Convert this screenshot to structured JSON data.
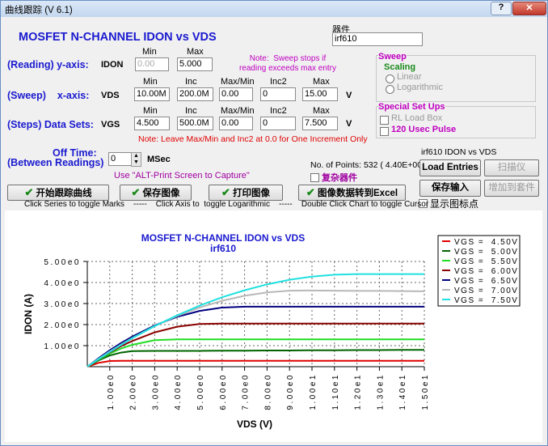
{
  "window": {
    "title": "曲线跟踪 (V 6.1)",
    "help": "?"
  },
  "form": {
    "heading": "MOSFET N-CHANNEL IDON vs VDS",
    "device_label": "器件",
    "device_value": "irf610",
    "y_row": {
      "label": "(Reading) y-axis:",
      "name": "IDON",
      "headers": [
        "Min",
        "Max"
      ],
      "values": [
        "0.00",
        "5.000"
      ]
    },
    "note1": [
      "Note:  Sweep stops if",
      "reading exceeds max entry"
    ],
    "x_row": {
      "label": "(Sweep)    x-axis:",
      "name": "VDS",
      "headers": [
        "Min",
        "Inc",
        "Max/Min",
        "Inc2",
        "Max"
      ],
      "values": [
        "10.00M",
        "200.0M",
        "0.00",
        "0",
        "15.00"
      ],
      "unit": "V"
    },
    "s_row": {
      "label": "(Steps) Data Sets:",
      "name": "VGS",
      "headers": [
        "Min",
        "Inc",
        "Max/Min",
        "Inc2",
        "Max"
      ],
      "values": [
        "4.500",
        "500.0M",
        "0.00",
        "0",
        "7.500"
      ],
      "unit": "V"
    },
    "note2": "Note: Leave Max/Min and Inc2 at 0.0 for One Increment Only",
    "sweep": {
      "title": "Sweep",
      "scaling": "Scaling",
      "options": [
        "Linear",
        "Logarithmic"
      ]
    },
    "special": {
      "title": "Special Set Ups",
      "options": [
        "RL Load Box",
        "120 Usec Pulse"
      ]
    },
    "off_time": {
      "label1": "Off Time:",
      "label2": "(Between Readings)",
      "value": "0",
      "unit": "MSec"
    },
    "capture_hint": "Use \"ALT-Print Screen to Capture\"",
    "points": "No. of Points: 532 ( 4.40E+00)",
    "complex": "复杂器件",
    "chart_name": "irf610 IDON vs VDS",
    "show_marks": "显示图标点",
    "hint": "Click Series to toggle Marks    -----    Click Axis to  toggle Logarithmic    -----    Double Click Chart to toggle Cursor"
  },
  "buttons": {
    "load": "Load Entries",
    "scan": "扫描仪",
    "save_input": "保存输入",
    "add_kit": "增加到套件",
    "start": "开始跟踪曲线",
    "save_image": "保存图像",
    "print": "打印图像",
    "excel": "图像数据转到Excel"
  },
  "chart_data": {
    "type": "line",
    "title": "MOSFET N-CHANNEL IDON vs VDS",
    "subtitle": "irf610",
    "x_label": "VDS (V)",
    "y_label": "IDON (A)",
    "xlim": [
      0,
      15
    ],
    "ylim": [
      0,
      5
    ],
    "grid": true,
    "xticks": [
      {
        "value": 1,
        "label": "1.00e0"
      },
      {
        "value": 2,
        "label": "2.00e0"
      },
      {
        "value": 3,
        "label": "3.00e0"
      },
      {
        "value": 4,
        "label": "4.00e0"
      },
      {
        "value": 5,
        "label": "5.00e0"
      },
      {
        "value": 6,
        "label": "6.00e0"
      },
      {
        "value": 7,
        "label": "7.00e0"
      },
      {
        "value": 8,
        "label": "8.00e0"
      },
      {
        "value": 9,
        "label": "9.00e0"
      },
      {
        "value": 10,
        "label": "1.00e1"
      },
      {
        "value": 11,
        "label": "1.10e1"
      },
      {
        "value": 12,
        "label": "1.20e1"
      },
      {
        "value": 13,
        "label": "1.30e1"
      },
      {
        "value": 14,
        "label": "1.40e1"
      },
      {
        "value": 15,
        "label": "1.50e1"
      }
    ],
    "yticks": [
      {
        "value": 1,
        "label": "1.00e0"
      },
      {
        "value": 2,
        "label": "2.00e0"
      },
      {
        "value": 3,
        "label": "3.00e0"
      },
      {
        "value": 4,
        "label": "4.00e0"
      },
      {
        "value": 5,
        "label": "5.00e0"
      }
    ],
    "x": [
      0,
      0.5,
      1,
      1.5,
      2,
      3,
      4,
      5,
      6,
      7,
      8,
      9,
      10,
      11,
      12,
      13,
      14,
      15
    ],
    "series": [
      {
        "name": "VGS =  4.50V",
        "color": "#e00000",
        "values": [
          0,
          0.18,
          0.27,
          0.28,
          0.28,
          0.28,
          0.28,
          0.28,
          0.28,
          0.28,
          0.28,
          0.28,
          0.28,
          0.28,
          0.28,
          0.28,
          0.28,
          0.28
        ]
      },
      {
        "name": "VGS =  5.00V",
        "color": "#006400",
        "values": [
          0,
          0.3,
          0.53,
          0.67,
          0.74,
          0.75,
          0.75,
          0.75,
          0.76,
          0.76,
          0.77,
          0.77,
          0.78,
          0.78,
          0.79,
          0.79,
          0.8,
          0.8
        ]
      },
      {
        "name": "VGS =  5.50V",
        "color": "#22dd22",
        "values": [
          0,
          0.34,
          0.62,
          0.86,
          1.04,
          1.26,
          1.3,
          1.3,
          1.3,
          1.3,
          1.3,
          1.3,
          1.3,
          1.3,
          1.3,
          1.3,
          1.3,
          1.3
        ]
      },
      {
        "name": "VGS =  6.00V",
        "color": "#8b0000",
        "values": [
          0,
          0.36,
          0.68,
          0.97,
          1.22,
          1.63,
          1.9,
          2.03,
          2.05,
          2.05,
          2.05,
          2.05,
          2.05,
          2.05,
          2.05,
          2.05,
          2.05,
          2.05
        ]
      },
      {
        "name": "VGS =  6.50V",
        "color": "#000080",
        "values": [
          0,
          0.4,
          0.78,
          1.12,
          1.43,
          1.96,
          2.37,
          2.65,
          2.81,
          2.85,
          2.85,
          2.85,
          2.85,
          2.85,
          2.85,
          2.85,
          2.85,
          2.85
        ]
      },
      {
        "name": "VGS =  7.00V",
        "color": "#b8b8b8",
        "values": [
          0,
          0.37,
          0.72,
          1.05,
          1.36,
          1.93,
          2.41,
          2.81,
          3.13,
          3.37,
          3.53,
          3.61,
          3.62,
          3.61,
          3.6,
          3.6,
          3.59,
          3.58
        ]
      },
      {
        "name": "VGS =  7.50V",
        "color": "#22e0e0",
        "values": [
          0,
          0.36,
          0.7,
          1.03,
          1.35,
          1.93,
          2.44,
          2.9,
          3.3,
          3.63,
          3.91,
          4.13,
          4.28,
          4.37,
          4.4,
          4.4,
          4.4,
          4.4
        ]
      }
    ]
  }
}
